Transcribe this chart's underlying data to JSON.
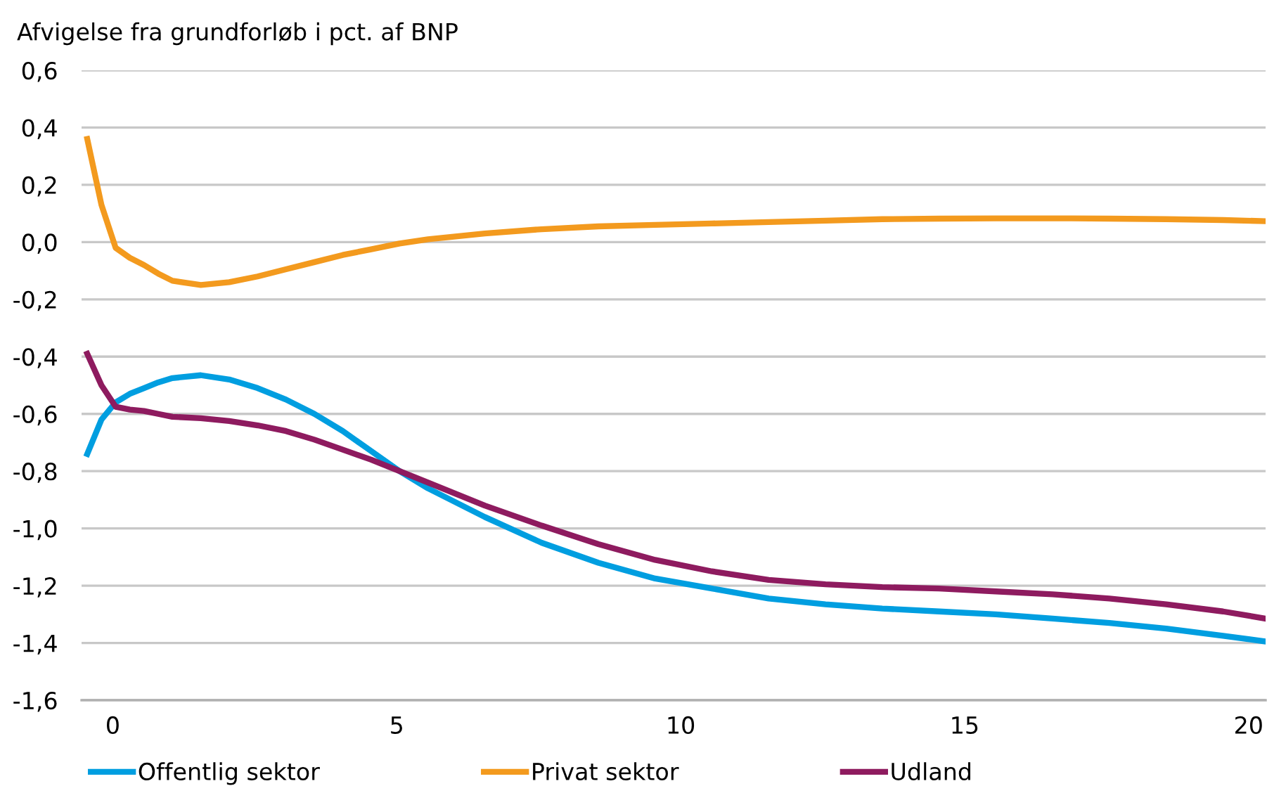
{
  "chart_data": {
    "type": "line",
    "title": "Afvigelse fra grundforløb i pct. af BNP",
    "x": [
      -0.45,
      -0.2,
      0.05,
      0.3,
      0.55,
      0.8,
      1.05,
      1.55,
      2.05,
      2.55,
      3.05,
      3.55,
      4.05,
      4.55,
      5.05,
      5.55,
      6.55,
      7.55,
      8.55,
      9.55,
      10.55,
      11.55,
      12.55,
      13.55,
      14.55,
      15.55,
      16.55,
      17.55,
      18.55,
      19.55,
      20.3
    ],
    "series": [
      {
        "name": "Offentlig sektor",
        "color": "#009ee0",
        "values": [
          -0.74,
          -0.62,
          -0.56,
          -0.53,
          -0.51,
          -0.49,
          -0.475,
          -0.465,
          -0.48,
          -0.51,
          -0.55,
          -0.6,
          -0.66,
          -0.73,
          -0.8,
          -0.86,
          -0.96,
          -1.05,
          -1.12,
          -1.175,
          -1.21,
          -1.245,
          -1.265,
          -1.28,
          -1.29,
          -1.3,
          -1.315,
          -1.33,
          -1.35,
          -1.375,
          -1.395
        ]
      },
      {
        "name": "Privat sektor",
        "color": "#f39a1e",
        "values": [
          0.36,
          0.13,
          -0.02,
          -0.055,
          -0.08,
          -0.11,
          -0.135,
          -0.15,
          -0.14,
          -0.12,
          -0.095,
          -0.07,
          -0.045,
          -0.025,
          -0.005,
          0.01,
          0.03,
          0.045,
          0.055,
          0.06,
          0.065,
          0.07,
          0.075,
          0.08,
          0.082,
          0.083,
          0.083,
          0.082,
          0.08,
          0.077,
          0.073
        ]
      },
      {
        "name": "Udland",
        "color": "#8e1b5f",
        "values": [
          -0.39,
          -0.5,
          -0.575,
          -0.585,
          -0.59,
          -0.6,
          -0.61,
          -0.615,
          -0.625,
          -0.64,
          -0.66,
          -0.69,
          -0.725,
          -0.76,
          -0.8,
          -0.84,
          -0.92,
          -0.99,
          -1.055,
          -1.11,
          -1.15,
          -1.18,
          -1.195,
          -1.205,
          -1.21,
          -1.22,
          -1.23,
          -1.245,
          -1.265,
          -1.29,
          -1.315
        ]
      }
    ],
    "xlim": [
      -0.55,
      20.3
    ],
    "xticks": [
      0,
      5,
      10,
      15,
      20
    ],
    "ylim": [
      -1.6,
      0.6
    ],
    "yticks": [
      {
        "value": -1.6,
        "label": "-1,6"
      },
      {
        "value": -1.4,
        "label": "-1,4"
      },
      {
        "value": -1.2,
        "label": "-1,2"
      },
      {
        "value": -1.0,
        "label": "-1,0"
      },
      {
        "value": -0.8,
        "label": "-0,8"
      },
      {
        "value": -0.6,
        "label": "-0,6"
      },
      {
        "value": -0.4,
        "label": "-0,4"
      },
      {
        "value": -0.2,
        "label": "-0,2"
      },
      {
        "value": 0,
        "label": "0,0"
      },
      {
        "value": 0.2,
        "label": "0,2"
      },
      {
        "value": 0.4,
        "label": "0,4"
      },
      {
        "value": 0.6,
        "label": "0,6"
      }
    ],
    "grid": "y",
    "legend": "bottom",
    "marker": "none",
    "line_style": "solid"
  }
}
